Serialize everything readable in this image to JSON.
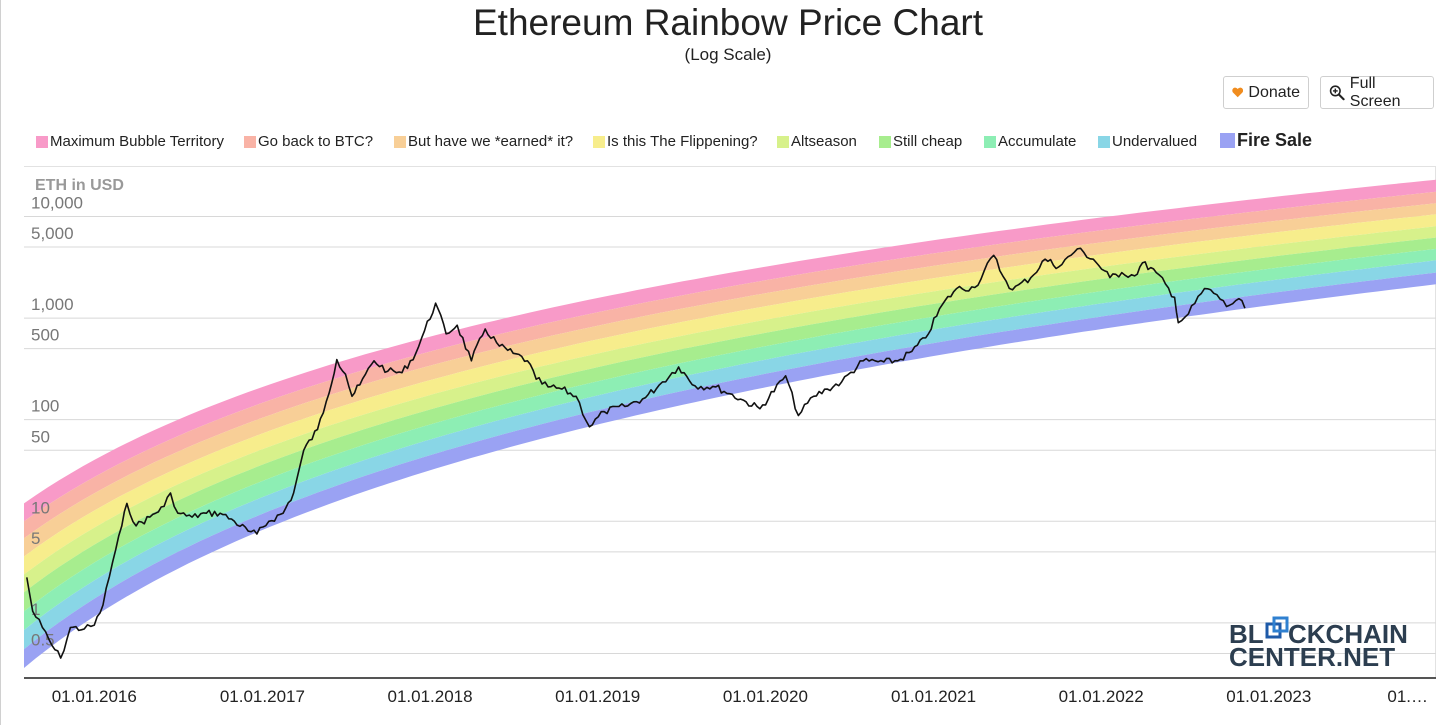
{
  "header": {
    "title": "Ethereum Rainbow Price Chart",
    "subtitle": "(Log Scale)"
  },
  "buttons": {
    "donate": {
      "label": "Donate",
      "icon": "heart-icon"
    },
    "fullscreen": {
      "label": "Full Screen",
      "icon": "zoom-in-icon"
    }
  },
  "watermark": {
    "line1": "BL",
    "line1b": "CKCHAIN",
    "line2": "CENTER.NET"
  },
  "chart_data": {
    "type": "line",
    "title": "Ethereum Rainbow Price Chart",
    "subtitle": "(Log Scale)",
    "ylabel": "ETH in USD",
    "xlabel": "",
    "y_scale": "log",
    "ylim": [
      0.3,
      30000
    ],
    "xlim": [
      "2015-08-01",
      "2023-12-31"
    ],
    "grid": true,
    "legend_position": "top",
    "y_ticks": [
      {
        "value": 0.5,
        "label": "0.5"
      },
      {
        "value": 1,
        "label": "1"
      },
      {
        "value": 5,
        "label": "5"
      },
      {
        "value": 10,
        "label": "10"
      },
      {
        "value": 50,
        "label": "50"
      },
      {
        "value": 100,
        "label": "100"
      },
      {
        "value": 500,
        "label": "500"
      },
      {
        "value": 1000,
        "label": "1,000"
      },
      {
        "value": 5000,
        "label": "5,000"
      },
      {
        "value": 10000,
        "label": "10,000"
      }
    ],
    "x_ticks": [
      {
        "value": "2016-01-01",
        "label": "01.01.2016"
      },
      {
        "value": "2017-01-01",
        "label": "01.01.2017"
      },
      {
        "value": "2018-01-01",
        "label": "01.01.2018"
      },
      {
        "value": "2019-01-01",
        "label": "01.01.2019"
      },
      {
        "value": "2020-01-01",
        "label": "01.01.2020"
      },
      {
        "value": "2021-01-01",
        "label": "01.01.2021"
      },
      {
        "value": "2022-01-01",
        "label": "01.01.2022"
      },
      {
        "value": "2023-01-01",
        "label": "01.01.2023"
      },
      {
        "value": "2024-01-01",
        "label": "01.…"
      }
    ],
    "bands": [
      {
        "name": "Maximum Bubble Territory",
        "color": "#f89ac8",
        "at_2015_08": 15,
        "at_2023_12": 23000
      },
      {
        "name": "Go back to BTC?",
        "color": "#f9b3a6",
        "at_2015_08": 10,
        "at_2023_12": 17500
      },
      {
        "name": "But have we *earned* it?",
        "color": "#f8cf97",
        "at_2015_08": 6.8,
        "at_2023_12": 13500
      },
      {
        "name": "Is this The Flippening?",
        "color": "#f7ed8c",
        "at_2015_08": 4.5,
        "at_2023_12": 10500
      },
      {
        "name": "Altseason",
        "color": "#d7f18b",
        "at_2015_08": 3,
        "at_2023_12": 8000
      },
      {
        "name": "Still cheap",
        "color": "#a7ed8e",
        "at_2015_08": 2,
        "at_2023_12": 6200
      },
      {
        "name": "Accumulate",
        "color": "#8deeb4",
        "at_2015_08": 1.3,
        "at_2023_12": 4800
      },
      {
        "name": "Undervalued",
        "color": "#89d6e6",
        "at_2015_08": 0.85,
        "at_2023_12": 3700
      },
      {
        "name": "Fire Sale",
        "color": "#9aa2f3",
        "at_2015_08": 0.55,
        "at_2023_12": 2800,
        "floor_at_2015_08": 0.36,
        "floor_at_2023_12": 2150
      }
    ],
    "series": [
      {
        "color": "#111111",
        "points": [
          [
            "2015-08-07",
            2.8
          ],
          [
            "2015-08-20",
            1.3
          ],
          [
            "2015-09-10",
            0.9
          ],
          [
            "2015-10-01",
            0.6
          ],
          [
            "2015-10-20",
            0.45
          ],
          [
            "2015-11-10",
            0.9
          ],
          [
            "2015-12-10",
            0.87
          ],
          [
            "2016-01-01",
            0.95
          ],
          [
            "2016-01-20",
            1.5
          ],
          [
            "2016-02-10",
            4
          ],
          [
            "2016-03-01",
            9
          ],
          [
            "2016-03-12",
            15
          ],
          [
            "2016-04-01",
            9
          ],
          [
            "2016-05-01",
            11
          ],
          [
            "2016-06-01",
            14
          ],
          [
            "2016-06-15",
            19
          ],
          [
            "2016-07-01",
            12
          ],
          [
            "2016-08-01",
            11
          ],
          [
            "2016-09-01",
            12
          ],
          [
            "2016-10-01",
            12
          ],
          [
            "2016-11-01",
            10
          ],
          [
            "2016-12-01",
            8
          ],
          [
            "2016-12-20",
            7.5
          ],
          [
            "2017-01-15",
            10
          ],
          [
            "2017-02-15",
            12
          ],
          [
            "2017-03-10",
            19
          ],
          [
            "2017-04-01",
            50
          ],
          [
            "2017-05-01",
            80
          ],
          [
            "2017-05-20",
            150
          ],
          [
            "2017-06-12",
            390
          ],
          [
            "2017-07-01",
            280
          ],
          [
            "2017-07-15",
            170
          ],
          [
            "2017-08-01",
            220
          ],
          [
            "2017-09-01",
            380
          ],
          [
            "2017-10-01",
            300
          ],
          [
            "2017-11-01",
            290
          ],
          [
            "2017-12-01",
            450
          ],
          [
            "2017-12-20",
            750
          ],
          [
            "2018-01-13",
            1400
          ],
          [
            "2018-02-05",
            700
          ],
          [
            "2018-03-01",
            850
          ],
          [
            "2018-04-01",
            380
          ],
          [
            "2018-05-01",
            780
          ],
          [
            "2018-06-01",
            530
          ],
          [
            "2018-07-01",
            450
          ],
          [
            "2018-08-01",
            380
          ],
          [
            "2018-08-20",
            250
          ],
          [
            "2018-09-15",
            210
          ],
          [
            "2018-10-15",
            200
          ],
          [
            "2018-11-15",
            170
          ],
          [
            "2018-12-14",
            85
          ],
          [
            "2019-01-15",
            120
          ],
          [
            "2019-03-01",
            135
          ],
          [
            "2019-04-15",
            165
          ],
          [
            "2019-05-15",
            220
          ],
          [
            "2019-06-26",
            330
          ],
          [
            "2019-08-01",
            215
          ],
          [
            "2019-09-15",
            210
          ],
          [
            "2019-10-15",
            180
          ],
          [
            "2019-11-20",
            150
          ],
          [
            "2019-12-20",
            128
          ],
          [
            "2020-02-14",
            270
          ],
          [
            "2020-03-13",
            110
          ],
          [
            "2020-04-15",
            170
          ],
          [
            "2020-05-15",
            200
          ],
          [
            "2020-06-15",
            235
          ],
          [
            "2020-08-01",
            380
          ],
          [
            "2020-09-15",
            370
          ],
          [
            "2020-10-15",
            380
          ],
          [
            "2020-11-15",
            470
          ],
          [
            "2020-12-15",
            640
          ],
          [
            "2021-01-20",
            1350
          ],
          [
            "2021-02-20",
            1950
          ],
          [
            "2021-04-01",
            2000
          ],
          [
            "2021-05-12",
            4150
          ],
          [
            "2021-06-01",
            2600
          ],
          [
            "2021-06-22",
            1900
          ],
          [
            "2021-08-01",
            2500
          ],
          [
            "2021-09-01",
            3800
          ],
          [
            "2021-10-01",
            3200
          ],
          [
            "2021-11-10",
            4800
          ],
          [
            "2021-12-15",
            3800
          ],
          [
            "2022-01-20",
            2500
          ],
          [
            "2022-02-15",
            2800
          ],
          [
            "2022-03-15",
            2600
          ],
          [
            "2022-04-01",
            3500
          ],
          [
            "2022-05-01",
            2800
          ],
          [
            "2022-06-10",
            1600
          ],
          [
            "2022-06-18",
            900
          ],
          [
            "2022-07-10",
            1100
          ],
          [
            "2022-08-14",
            1950
          ],
          [
            "2022-09-10",
            1700
          ],
          [
            "2022-10-01",
            1300
          ],
          [
            "2022-10-28",
            1550
          ],
          [
            "2022-11-10",
            1250
          ]
        ]
      }
    ]
  }
}
